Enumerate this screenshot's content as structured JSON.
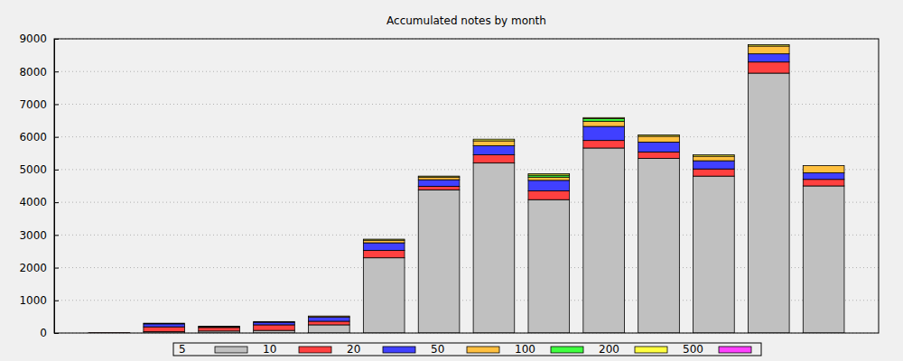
{
  "chart_data": {
    "type": "bar",
    "title": "Accumulated notes by month",
    "stacked": true,
    "grid": true,
    "legend": "bottom",
    "tick_labels": "y",
    "x": [
      1,
      2,
      3,
      4,
      5,
      6,
      7,
      8,
      9,
      10,
      11,
      12,
      13,
      14
    ],
    "xlim": [
      0,
      15
    ],
    "ylim": [
      0,
      9000
    ],
    "yticks": [
      0,
      1000,
      2000,
      3000,
      4000,
      5000,
      6000,
      7000,
      8000,
      9000
    ],
    "series": [
      {
        "name": "5",
        "color": "#c0c0c0",
        "values": [
          0,
          40,
          60,
          80,
          250,
          2300,
          4380,
          5200,
          4080,
          5660,
          5340,
          4800,
          7950,
          4500
        ]
      },
      {
        "name": "10",
        "color": "#ff4040",
        "values": [
          10,
          150,
          110,
          170,
          110,
          230,
          110,
          250,
          270,
          230,
          200,
          220,
          340,
          200
        ]
      },
      {
        "name": "20",
        "color": "#4040ff",
        "values": [
          0,
          90,
          20,
          80,
          130,
          230,
          200,
          280,
          320,
          430,
          300,
          250,
          250,
          200
        ]
      },
      {
        "name": "50",
        "color": "#ffc040",
        "values": [
          0,
          20,
          20,
          20,
          30,
          80,
          80,
          150,
          100,
          160,
          180,
          140,
          240,
          220
        ]
      },
      {
        "name": "100",
        "color": "#40ff40",
        "values": [
          0,
          0,
          0,
          0,
          0,
          0,
          0,
          0,
          60,
          80,
          0,
          0,
          0,
          0
        ]
      },
      {
        "name": "200",
        "color": "#ffff40",
        "values": [
          0,
          0,
          0,
          0,
          0,
          30,
          30,
          50,
          40,
          30,
          40,
          40,
          40,
          0
        ]
      },
      {
        "name": "500",
        "color": "#ff40ff",
        "values": [
          0,
          0,
          0,
          0,
          0,
          0,
          0,
          0,
          0,
          0,
          0,
          0,
          0,
          0
        ]
      }
    ]
  }
}
